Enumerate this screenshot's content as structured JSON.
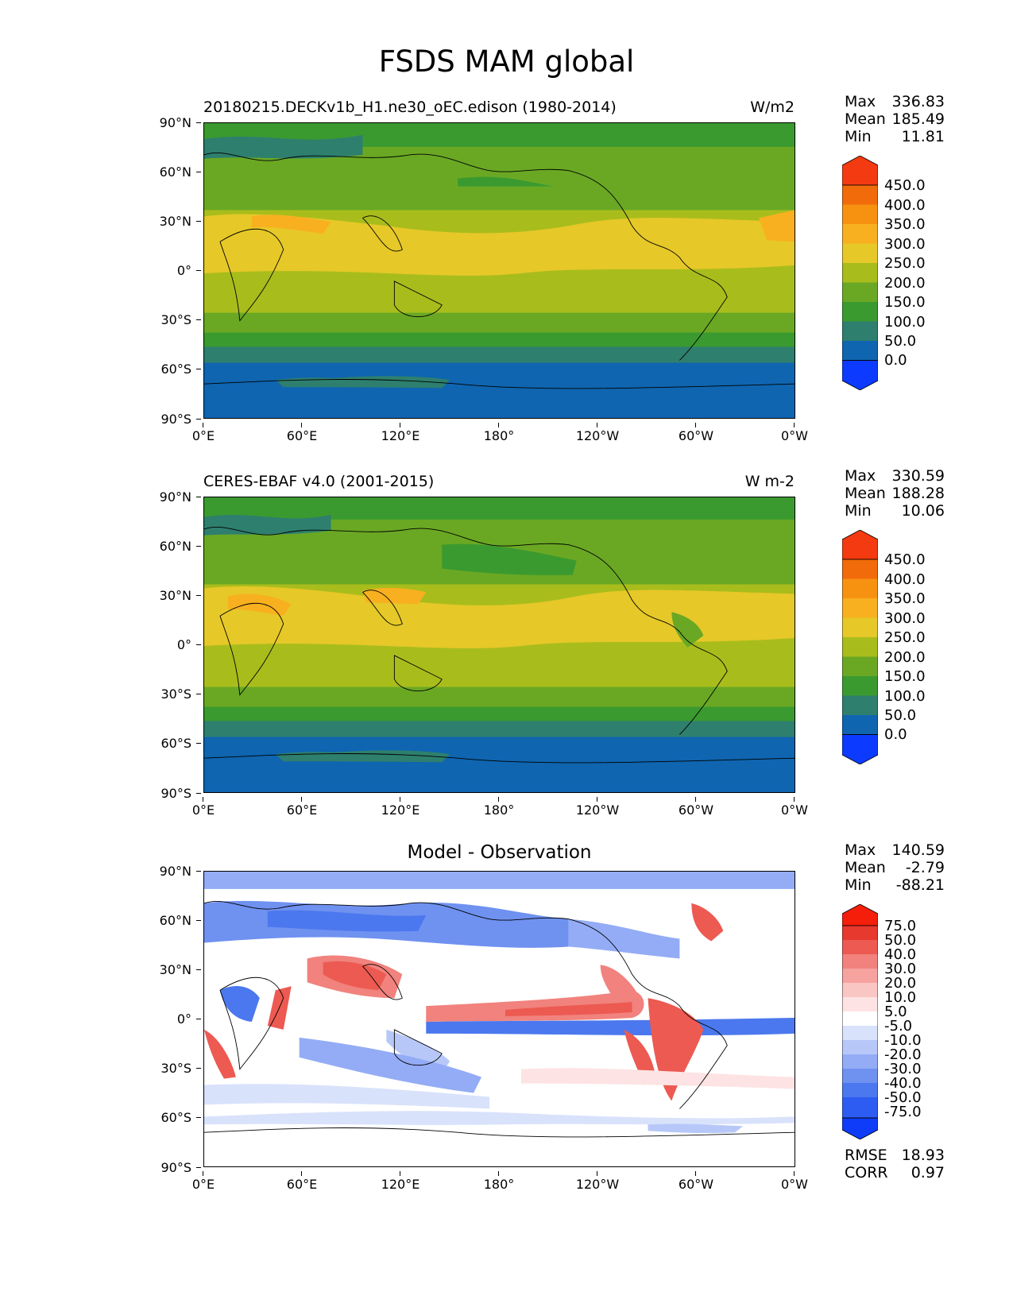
{
  "figure": {
    "title": "FSDS MAM global"
  },
  "axes": {
    "y_ticks": [
      "90°N",
      "60°N",
      "30°N",
      "0°",
      "30°S",
      "60°S",
      "90°S"
    ],
    "x_ticks": [
      "0°E",
      "60°E",
      "120°E",
      "180°",
      "120°W",
      "60°W",
      "0°W"
    ]
  },
  "panels": [
    {
      "left_title": "20180215.DECKv1b_H1.ne30_oEC.edison (1980-2014)",
      "right_title": "W/m2",
      "center_title": "",
      "stats": [
        {
          "label": "Max",
          "value": "336.83"
        },
        {
          "label": "Mean",
          "value": "185.49"
        },
        {
          "label": "Min",
          "value": "11.81"
        }
      ],
      "colorbar_labels": [
        "450.0",
        "400.0",
        "350.0",
        "300.0",
        "250.0",
        "200.0",
        "150.0",
        "100.0",
        "50.0",
        "0.0"
      ]
    },
    {
      "left_title": "CERES-EBAF v4.0 (2001-2015)",
      "right_title": "W m-2",
      "center_title": "",
      "stats": [
        {
          "label": "Max",
          "value": "330.59"
        },
        {
          "label": "Mean",
          "value": "188.28"
        },
        {
          "label": "Min",
          "value": "10.06"
        }
      ],
      "colorbar_labels": [
        "450.0",
        "400.0",
        "350.0",
        "300.0",
        "250.0",
        "200.0",
        "150.0",
        "100.0",
        "50.0",
        "0.0"
      ]
    },
    {
      "left_title": "",
      "right_title": "",
      "center_title": "Model - Observation",
      "stats": [
        {
          "label": "Max",
          "value": "140.59"
        },
        {
          "label": "Mean",
          "value": "-2.79"
        },
        {
          "label": "Min",
          "value": "-88.21"
        }
      ],
      "colorbar_labels": [
        "75.0",
        "50.0",
        "40.0",
        "30.0",
        "20.0",
        "10.0",
        "5.0",
        "-5.0",
        "-10.0",
        "-20.0",
        "-30.0",
        "-40.0",
        "-50.0",
        "-75.0"
      ],
      "metrics": [
        {
          "label": "RMSE",
          "value": "18.93"
        },
        {
          "label": "CORR",
          "value": "0.97"
        }
      ]
    }
  ],
  "colors": {
    "absolute_scale": [
      "#0c3bff",
      "#0f65b0",
      "#2e7f6e",
      "#3a9a2f",
      "#6aa824",
      "#a8bd1c",
      "#e6c828",
      "#f8b020",
      "#f79210",
      "#f26b0a",
      "#f43a10"
    ],
    "difference_scale": [
      "#0f3cf8",
      "#2d5cf2",
      "#4b78ee",
      "#6f91f0",
      "#93acf5",
      "#b7c8f8",
      "#d9e2fb",
      "#ffffff",
      "#fde3e3",
      "#fac6c4",
      "#f6a29f",
      "#f1827d",
      "#ec5a52",
      "#e8392f",
      "#f51e0a"
    ]
  }
}
